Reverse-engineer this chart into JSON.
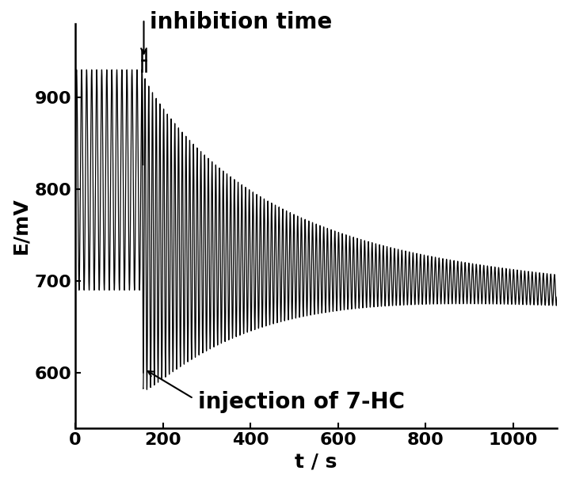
{
  "xlabel": "t / s",
  "ylabel": "E/mV",
  "xlim": [
    0,
    1100
  ],
  "ylim": [
    540,
    980
  ],
  "xticks": [
    0,
    200,
    400,
    600,
    800,
    1000
  ],
  "yticks": [
    600,
    700,
    800,
    900
  ],
  "background_color": "#ffffff",
  "line_color": "#000000",
  "line_width": 0.9,
  "injection_time": 155,
  "pre_osc_period": 11.5,
  "pre_osc_amp": 120,
  "pre_osc_mean": 810,
  "post_osc_period": 8.5,
  "post_osc_amp_start": 160,
  "post_osc_amp_end": 12,
  "post_mean_start": 755,
  "post_mean_end": 690,
  "inhibition_time_label": "inhibition time",
  "injection_label": "injection of 7-HC",
  "annotation_fontsize": 20,
  "label_fontsize": 18,
  "tick_fontsize": 16
}
